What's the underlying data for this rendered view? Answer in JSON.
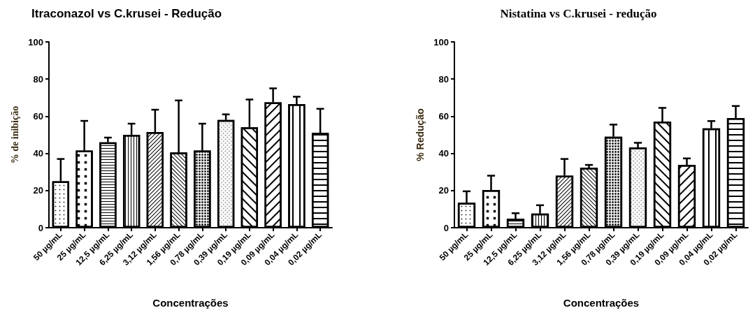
{
  "chart_data": [
    {
      "type": "bar",
      "title": "Itraconazol vs C.krusei - Redução",
      "xlabel": "Concentrações",
      "ylabel": "% de inibição",
      "categories": [
        "50 µg/mL",
        "25 µg/mL",
        "12,5 µg/mL",
        "6,25 µg/mL",
        "3,12 µg/mL",
        "1,56 µg/mL",
        "0,78 µg/mL",
        "0,39 µg/mL",
        "0,19 µg/mL",
        "0,09 µg/mL",
        "0,04 µg/mL",
        "0,02 µg/mL"
      ],
      "values": [
        25,
        41.5,
        46,
        50,
        51.5,
        40.5,
        41.5,
        58,
        54,
        67.5,
        66.5,
        51
      ],
      "errors": [
        [
          25,
          37
        ],
        [
          41.5,
          57.5
        ],
        [
          46,
          48.5
        ],
        [
          50,
          56
        ],
        [
          51.5,
          63.5
        ],
        [
          40.5,
          68.5
        ],
        [
          41.5,
          56
        ],
        [
          58,
          61
        ],
        [
          54,
          69
        ],
        [
          67.5,
          75
        ],
        [
          66.5,
          70.5
        ],
        [
          51,
          64
        ]
      ],
      "color": "#ffffff",
      "ylim": [
        0,
        100
      ],
      "yticks": [
        0,
        20,
        40,
        60,
        80,
        100
      ],
      "grid": false
    },
    {
      "type": "bar",
      "title": "Nistatina vs C.krusei - redução",
      "xlabel": "Concentrações",
      "ylabel": "% Redução",
      "categories": [
        "50 µg/mL",
        "25 µg/mL",
        "12,5 µg/mL",
        "6,25 µg/mL",
        "3,12 µg/mL",
        "1,56 µg/mL",
        "0,78 µg/mL",
        "0,39 µg/mL",
        "0,19 µg/mL",
        "0,09 µg/mL",
        "0,04 µg/mL",
        "0,02 µg/mL"
      ],
      "values": [
        13.4,
        20.3,
        4.8,
        7.6,
        28,
        32.3,
        49,
        43.2,
        57.1,
        33.8,
        53.5,
        59
      ],
      "errors": [
        [
          13.4,
          19.6
        ],
        [
          20.3,
          28
        ],
        [
          4.8,
          7.8
        ],
        [
          7.6,
          12.1
        ],
        [
          28,
          37
        ],
        [
          32.3,
          33.8
        ],
        [
          49,
          55.5
        ],
        [
          43.2,
          45.7
        ],
        [
          57.1,
          64.5
        ],
        [
          33.8,
          37.3
        ],
        [
          53.5,
          57.4
        ],
        [
          59,
          65.5
        ]
      ],
      "color": "#ffffff",
      "ylim": [
        0,
        100
      ],
      "yticks": [
        0,
        20,
        40,
        60,
        80,
        100
      ],
      "grid": false
    }
  ]
}
